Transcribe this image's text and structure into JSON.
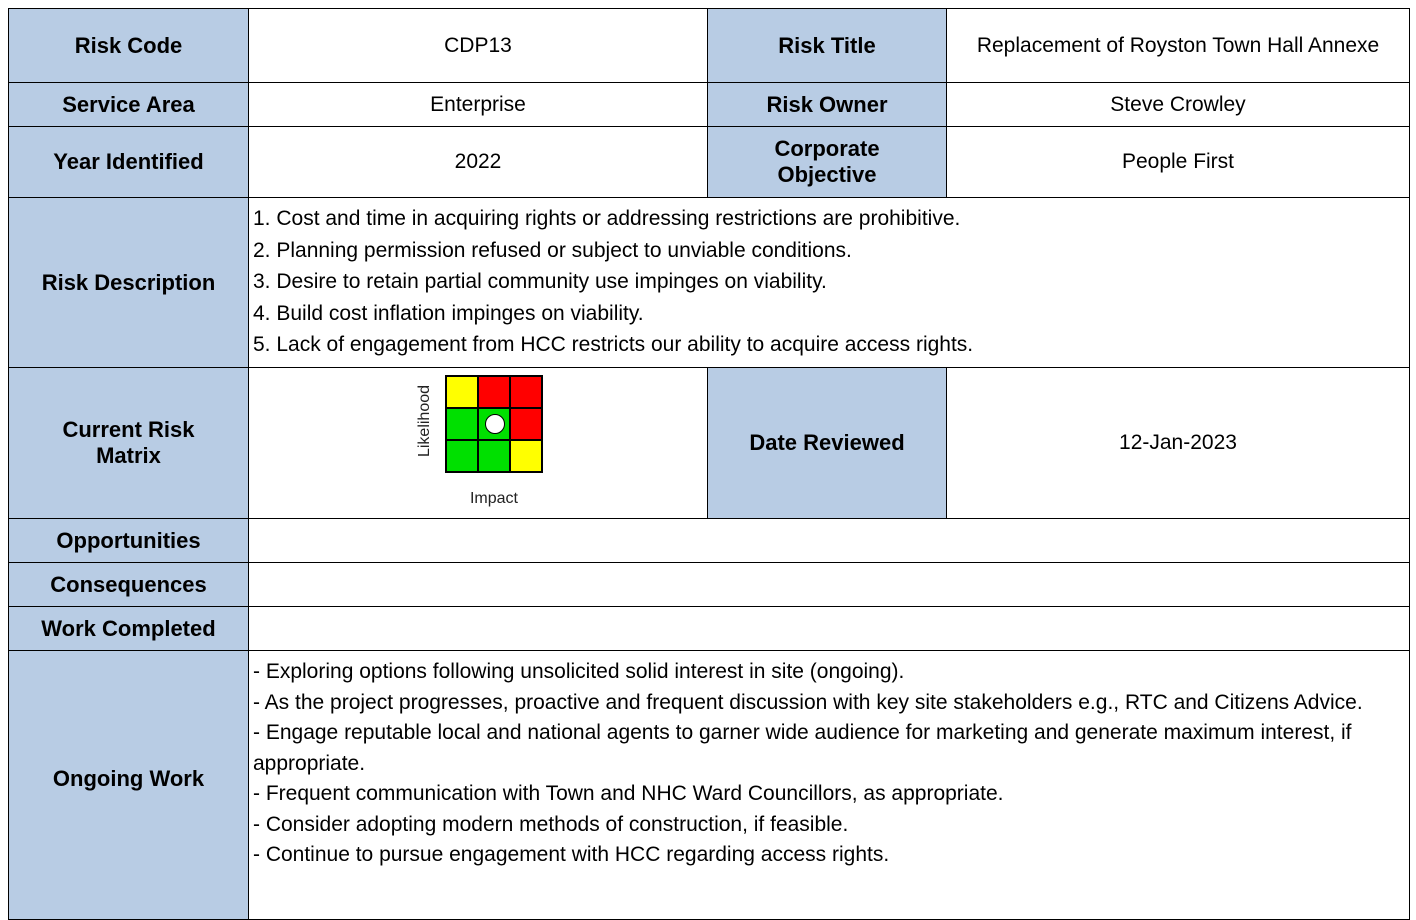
{
  "rows": [
    {
      "label": "Risk Code",
      "value": "CDP13",
      "label2": "Risk Title",
      "value2": "Replacement of Royston Town Hall Annexe"
    },
    {
      "label": "Service Area",
      "value": "Enterprise",
      "label2": "Risk Owner",
      "value2": "Steve Crowley"
    },
    {
      "label": "Year Identified",
      "value": "2022",
      "label2": "Corporate Objective",
      "value2": "People First"
    }
  ],
  "description": {
    "label": "Risk Description",
    "items": [
      "1. Cost and time in acquiring rights or addressing restrictions are prohibitive.",
      "2. Planning permission refused or subject to unviable conditions.",
      "3. Desire to retain partial community use impinges on viability.",
      "4. Build cost inflation impinges on viability.",
      "5. Lack of engagement from HCC restricts our ability to acquire access rights."
    ]
  },
  "matrix": {
    "label": "Current Risk Matrix",
    "y_axis": "Likelihood",
    "x_axis": "Impact",
    "label2": "Date Reviewed",
    "value2": "12-Jan-2023"
  },
  "opportunities": {
    "label": "Opportunities"
  },
  "consequences": {
    "label": "Consequences"
  },
  "work_completed": {
    "label": "Work Completed"
  },
  "ongoing": {
    "label": "Ongoing Work",
    "items": [
      "- Exploring options following unsolicited solid interest in site (ongoing).",
      "- As the project progresses, proactive and frequent discussion with key site stakeholders e.g., RTC and Citizens Advice.",
      "- Engage reputable local and national agents to garner wide audience for marketing and generate maximum interest, if appropriate.",
      "- Frequent communication with Town and NHC Ward Councillors, as appropriate.",
      "- Consider adopting modern methods of construction, if feasible.",
      "- Continue to pursue engagement with HCC regarding access rights."
    ]
  }
}
